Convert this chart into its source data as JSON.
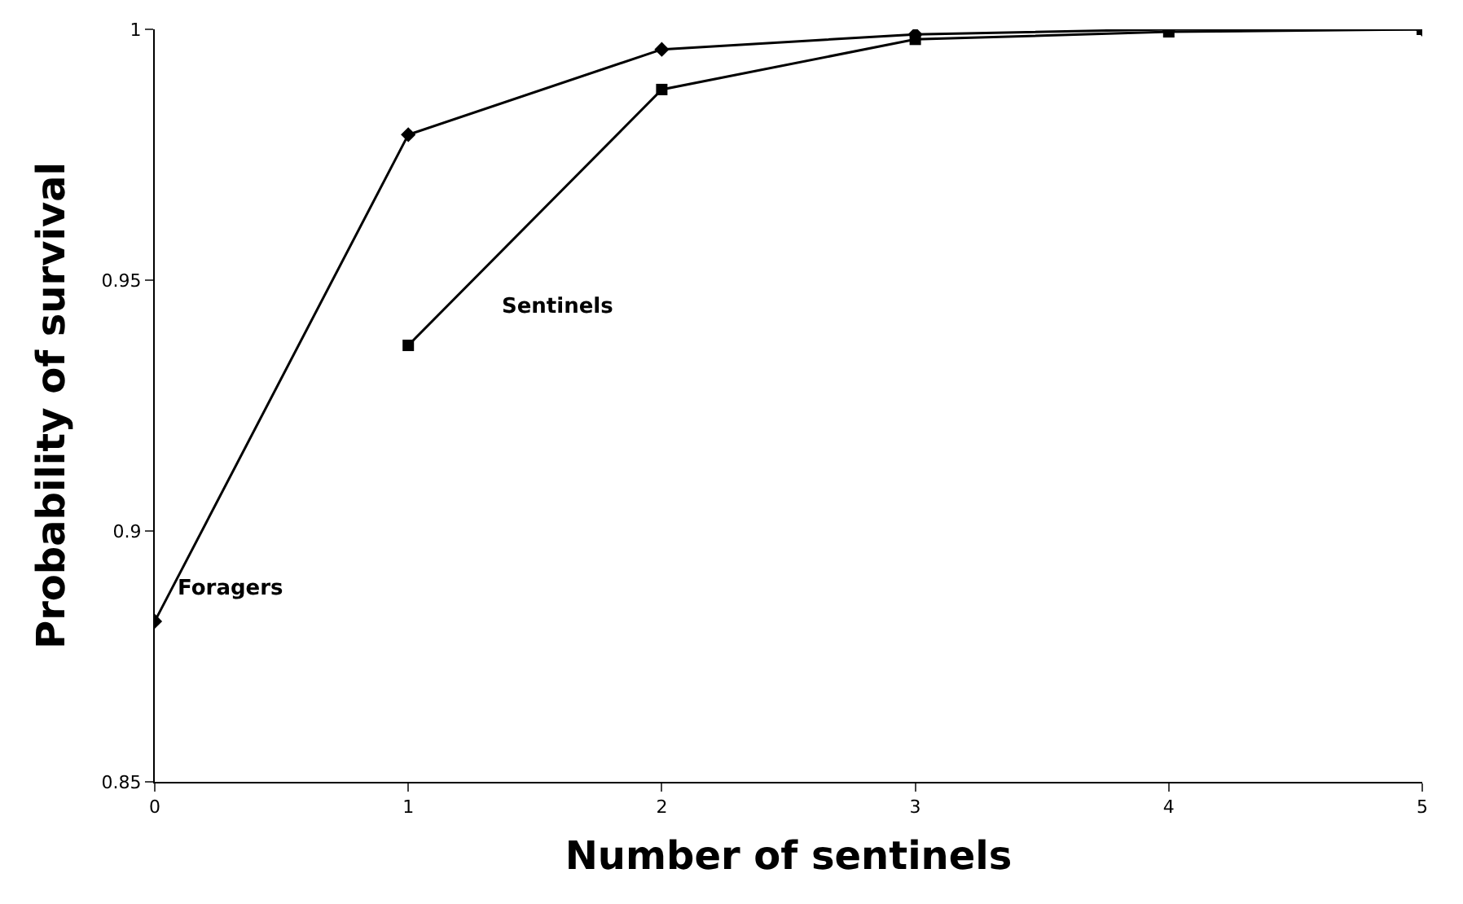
{
  "chart_data": {
    "type": "line",
    "xlabel": "Number of sentinels",
    "ylabel": "Probability of survival",
    "x": [
      0,
      1,
      2,
      3,
      4,
      5
    ],
    "series": [
      {
        "name": "Foragers",
        "color": "#000000",
        "marker": "diamond",
        "values": [
          0.882,
          0.979,
          0.996,
          0.999,
          1.0,
          1.0
        ]
      },
      {
        "name": "Sentinels",
        "color": "#000000",
        "marker": "square",
        "values": [
          null,
          0.937,
          0.988,
          0.998,
          0.9995,
          1.0
        ]
      }
    ],
    "xlim": [
      0,
      5
    ],
    "xticks": [
      0,
      1,
      2,
      3,
      4,
      5
    ],
    "ylim": [
      0.85,
      1
    ],
    "yticks": [
      0.85,
      0.9,
      0.95,
      1
    ],
    "legend": false
  }
}
